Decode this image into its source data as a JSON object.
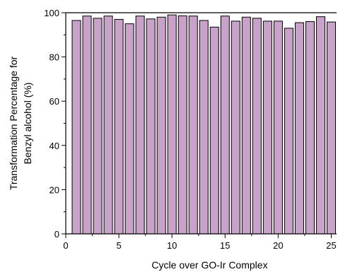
{
  "chart_data": {
    "type": "bar",
    "xlabel": "Cycle over GO-Ir Complex",
    "ylabel_lines": [
      "Transformation Percentage for",
      "Benzyl alcohol (%)"
    ],
    "x": [
      1,
      2,
      3,
      4,
      5,
      6,
      7,
      8,
      9,
      10,
      11,
      12,
      13,
      14,
      15,
      16,
      17,
      18,
      19,
      20,
      21,
      22,
      23,
      24,
      25
    ],
    "values": [
      96.5,
      98.5,
      97.5,
      98.5,
      97,
      95,
      98.5,
      97.2,
      98,
      99,
      98.6,
      98.5,
      96.5,
      93.5,
      98.5,
      96.2,
      98,
      97.5,
      96.2,
      96.2,
      93,
      95.5,
      96,
      98.2,
      95.8
    ],
    "xlim": [
      0,
      25.5
    ],
    "ylim": [
      0,
      100
    ],
    "xticks": [
      0,
      5,
      10,
      15,
      20,
      25
    ],
    "yticks": [
      0,
      20,
      40,
      60,
      80,
      100
    ],
    "bar_color": "#c8a2c8",
    "grid": false
  }
}
